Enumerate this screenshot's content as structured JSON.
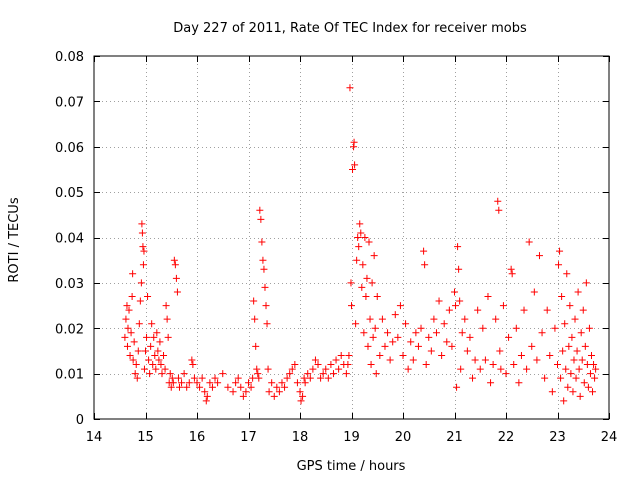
{
  "chart_data": {
    "type": "scatter",
    "title": "Day 227 of 2011, Rate Of TEC Index for receiver mobs",
    "xlabel": "GPS time / hours",
    "ylabel": "ROTI / TECUs",
    "xlim": [
      14,
      24
    ],
    "ylim": [
      0,
      0.08
    ],
    "xticks": [
      14,
      15,
      16,
      17,
      18,
      19,
      20,
      21,
      22,
      23,
      24
    ],
    "yticks": [
      0,
      0.01,
      0.02,
      0.03,
      0.04,
      0.05,
      0.06,
      0.07,
      0.08
    ],
    "xtick_labels": [
      "14",
      "15",
      "16",
      "17",
      "18",
      "19",
      "20",
      "21",
      "22",
      "23",
      "24"
    ],
    "ytick_labels": [
      "0",
      "0.01",
      "0.02",
      "0.03",
      "0.04",
      "0.05",
      "0.06",
      "0.07",
      "0.08"
    ],
    "grid": true,
    "marker": "+",
    "color": "#ff0000",
    "series": [
      {
        "name": "ROTI",
        "points": [
          [
            14.6,
            0.018
          ],
          [
            14.62,
            0.022
          ],
          [
            14.64,
            0.025
          ],
          [
            14.65,
            0.016
          ],
          [
            14.66,
            0.02
          ],
          [
            14.68,
            0.024
          ],
          [
            14.7,
            0.014
          ],
          [
            14.72,
            0.019
          ],
          [
            14.74,
            0.027
          ],
          [
            14.75,
            0.032
          ],
          [
            14.76,
            0.013
          ],
          [
            14.78,
            0.017
          ],
          [
            14.8,
            0.01
          ],
          [
            14.82,
            0.012
          ],
          [
            14.84,
            0.009
          ],
          [
            14.86,
            0.015
          ],
          [
            14.88,
            0.021
          ],
          [
            14.9,
            0.026
          ],
          [
            14.92,
            0.03
          ],
          [
            14.93,
            0.043
          ],
          [
            14.94,
            0.041
          ],
          [
            14.95,
            0.038
          ],
          [
            14.96,
            0.034
          ],
          [
            14.97,
            0.037
          ],
          [
            14.98,
            0.011
          ],
          [
            15.0,
            0.015
          ],
          [
            15.02,
            0.018
          ],
          [
            15.04,
            0.027
          ],
          [
            15.06,
            0.013
          ],
          [
            15.08,
            0.01
          ],
          [
            15.1,
            0.016
          ],
          [
            15.12,
            0.021
          ],
          [
            15.14,
            0.012
          ],
          [
            15.16,
            0.018
          ],
          [
            15.18,
            0.014
          ],
          [
            15.2,
            0.011
          ],
          [
            15.22,
            0.019
          ],
          [
            15.24,
            0.015
          ],
          [
            15.26,
            0.013
          ],
          [
            15.28,
            0.017
          ],
          [
            15.3,
            0.012
          ],
          [
            15.32,
            0.01
          ],
          [
            15.35,
            0.014
          ],
          [
            15.38,
            0.011
          ],
          [
            15.4,
            0.025
          ],
          [
            15.42,
            0.022
          ],
          [
            15.44,
            0.018
          ],
          [
            15.46,
            0.008
          ],
          [
            15.48,
            0.01
          ],
          [
            15.5,
            0.007
          ],
          [
            15.52,
            0.009
          ],
          [
            15.54,
            0.008
          ],
          [
            15.56,
            0.035
          ],
          [
            15.58,
            0.034
          ],
          [
            15.6,
            0.031
          ],
          [
            15.62,
            0.028
          ],
          [
            15.64,
            0.009
          ],
          [
            15.66,
            0.007
          ],
          [
            15.7,
            0.008
          ],
          [
            15.75,
            0.01
          ],
          [
            15.8,
            0.007
          ],
          [
            15.85,
            0.008
          ],
          [
            15.9,
            0.013
          ],
          [
            15.92,
            0.012
          ],
          [
            15.95,
            0.009
          ],
          [
            16.0,
            0.008
          ],
          [
            16.05,
            0.007
          ],
          [
            16.1,
            0.009
          ],
          [
            16.15,
            0.006
          ],
          [
            16.18,
            0.004
          ],
          [
            16.2,
            0.005
          ],
          [
            16.25,
            0.008
          ],
          [
            16.3,
            0.007
          ],
          [
            16.35,
            0.009
          ],
          [
            16.4,
            0.008
          ],
          [
            16.5,
            0.01
          ],
          [
            16.6,
            0.007
          ],
          [
            16.7,
            0.006
          ],
          [
            16.75,
            0.008
          ],
          [
            16.8,
            0.009
          ],
          [
            16.85,
            0.007
          ],
          [
            16.9,
            0.005
          ],
          [
            16.95,
            0.006
          ],
          [
            17.0,
            0.008
          ],
          [
            17.05,
            0.007
          ],
          [
            17.08,
            0.009
          ],
          [
            17.1,
            0.026
          ],
          [
            17.12,
            0.022
          ],
          [
            17.14,
            0.016
          ],
          [
            17.16,
            0.011
          ],
          [
            17.18,
            0.01
          ],
          [
            17.2,
            0.009
          ],
          [
            17.22,
            0.046
          ],
          [
            17.24,
            0.044
          ],
          [
            17.26,
            0.039
          ],
          [
            17.28,
            0.035
          ],
          [
            17.3,
            0.033
          ],
          [
            17.32,
            0.029
          ],
          [
            17.34,
            0.025
          ],
          [
            17.36,
            0.021
          ],
          [
            17.38,
            0.011
          ],
          [
            17.4,
            0.006
          ],
          [
            17.45,
            0.008
          ],
          [
            17.5,
            0.005
          ],
          [
            17.55,
            0.007
          ],
          [
            17.6,
            0.006
          ],
          [
            17.65,
            0.008
          ],
          [
            17.7,
            0.007
          ],
          [
            17.75,
            0.009
          ],
          [
            17.8,
            0.01
          ],
          [
            17.85,
            0.011
          ],
          [
            17.9,
            0.012
          ],
          [
            17.95,
            0.008
          ],
          [
            18.0,
            0.006
          ],
          [
            18.02,
            0.004
          ],
          [
            18.05,
            0.005
          ],
          [
            18.08,
            0.009
          ],
          [
            18.1,
            0.008
          ],
          [
            18.15,
            0.01
          ],
          [
            18.2,
            0.009
          ],
          [
            18.25,
            0.011
          ],
          [
            18.3,
            0.013
          ],
          [
            18.35,
            0.012
          ],
          [
            18.4,
            0.009
          ],
          [
            18.45,
            0.01
          ],
          [
            18.5,
            0.011
          ],
          [
            18.55,
            0.009
          ],
          [
            18.6,
            0.012
          ],
          [
            18.65,
            0.01
          ],
          [
            18.7,
            0.013
          ],
          [
            18.75,
            0.011
          ],
          [
            18.8,
            0.014
          ],
          [
            18.85,
            0.012
          ],
          [
            18.9,
            0.01
          ],
          [
            18.93,
            0.012
          ],
          [
            18.95,
            0.014
          ],
          [
            18.97,
            0.073
          ],
          [
            18.99,
            0.03
          ],
          [
            19.0,
            0.025
          ],
          [
            19.02,
            0.055
          ],
          [
            19.04,
            0.06
          ],
          [
            19.05,
            0.061
          ],
          [
            19.06,
            0.056
          ],
          [
            19.08,
            0.021
          ],
          [
            19.1,
            0.035
          ],
          [
            19.12,
            0.04
          ],
          [
            19.14,
            0.038
          ],
          [
            19.16,
            0.043
          ],
          [
            19.18,
            0.041
          ],
          [
            19.2,
            0.029
          ],
          [
            19.22,
            0.034
          ],
          [
            19.24,
            0.019
          ],
          [
            19.26,
            0.04
          ],
          [
            19.28,
            0.027
          ],
          [
            19.3,
            0.031
          ],
          [
            19.32,
            0.016
          ],
          [
            19.34,
            0.039
          ],
          [
            19.36,
            0.022
          ],
          [
            19.38,
            0.012
          ],
          [
            19.4,
            0.03
          ],
          [
            19.42,
            0.018
          ],
          [
            19.44,
            0.036
          ],
          [
            19.46,
            0.02
          ],
          [
            19.48,
            0.01
          ],
          [
            19.5,
            0.027
          ],
          [
            19.55,
            0.014
          ],
          [
            19.6,
            0.022
          ],
          [
            19.65,
            0.016
          ],
          [
            19.7,
            0.019
          ],
          [
            19.75,
            0.013
          ],
          [
            19.8,
            0.017
          ],
          [
            19.85,
            0.023
          ],
          [
            19.9,
            0.018
          ],
          [
            19.95,
            0.025
          ],
          [
            20.0,
            0.014
          ],
          [
            20.05,
            0.021
          ],
          [
            20.1,
            0.011
          ],
          [
            20.15,
            0.017
          ],
          [
            20.2,
            0.013
          ],
          [
            20.25,
            0.019
          ],
          [
            20.3,
            0.016
          ],
          [
            20.35,
            0.02
          ],
          [
            20.4,
            0.037
          ],
          [
            20.42,
            0.034
          ],
          [
            20.45,
            0.012
          ],
          [
            20.5,
            0.018
          ],
          [
            20.55,
            0.015
          ],
          [
            20.6,
            0.022
          ],
          [
            20.65,
            0.019
          ],
          [
            20.7,
            0.026
          ],
          [
            20.75,
            0.014
          ],
          [
            20.8,
            0.021
          ],
          [
            20.85,
            0.017
          ],
          [
            20.9,
            0.024
          ],
          [
            20.95,
            0.016
          ],
          [
            21.0,
            0.028
          ],
          [
            21.02,
            0.025
          ],
          [
            21.04,
            0.007
          ],
          [
            21.06,
            0.038
          ],
          [
            21.08,
            0.033
          ],
          [
            21.1,
            0.026
          ],
          [
            21.12,
            0.011
          ],
          [
            21.15,
            0.019
          ],
          [
            21.2,
            0.022
          ],
          [
            21.25,
            0.015
          ],
          [
            21.3,
            0.018
          ],
          [
            21.35,
            0.009
          ],
          [
            21.4,
            0.013
          ],
          [
            21.45,
            0.024
          ],
          [
            21.5,
            0.011
          ],
          [
            21.55,
            0.02
          ],
          [
            21.6,
            0.013
          ],
          [
            21.65,
            0.027
          ],
          [
            21.7,
            0.008
          ],
          [
            21.75,
            0.012
          ],
          [
            21.8,
            0.022
          ],
          [
            21.84,
            0.048
          ],
          [
            21.86,
            0.046
          ],
          [
            21.88,
            0.015
          ],
          [
            21.9,
            0.011
          ],
          [
            21.95,
            0.025
          ],
          [
            22.0,
            0.01
          ],
          [
            22.05,
            0.018
          ],
          [
            22.1,
            0.033
          ],
          [
            22.12,
            0.032
          ],
          [
            22.15,
            0.012
          ],
          [
            22.2,
            0.02
          ],
          [
            22.25,
            0.008
          ],
          [
            22.3,
            0.014
          ],
          [
            22.35,
            0.024
          ],
          [
            22.4,
            0.011
          ],
          [
            22.45,
            0.039
          ],
          [
            22.5,
            0.016
          ],
          [
            22.55,
            0.028
          ],
          [
            22.6,
            0.013
          ],
          [
            22.65,
            0.036
          ],
          [
            22.7,
            0.019
          ],
          [
            22.75,
            0.009
          ],
          [
            22.8,
            0.024
          ],
          [
            22.85,
            0.014
          ],
          [
            22.9,
            0.006
          ],
          [
            22.95,
            0.02
          ],
          [
            23.0,
            0.012
          ],
          [
            23.02,
            0.034
          ],
          [
            23.04,
            0.037
          ],
          [
            23.06,
            0.009
          ],
          [
            23.08,
            0.027
          ],
          [
            23.1,
            0.015
          ],
          [
            23.12,
            0.004
          ],
          [
            23.14,
            0.021
          ],
          [
            23.16,
            0.011
          ],
          [
            23.18,
            0.032
          ],
          [
            23.2,
            0.007
          ],
          [
            23.22,
            0.016
          ],
          [
            23.24,
            0.025
          ],
          [
            23.26,
            0.01
          ],
          [
            23.28,
            0.018
          ],
          [
            23.3,
            0.006
          ],
          [
            23.32,
            0.013
          ],
          [
            23.34,
            0.022
          ],
          [
            23.36,
            0.009
          ],
          [
            23.38,
            0.015
          ],
          [
            23.4,
            0.028
          ],
          [
            23.42,
            0.011
          ],
          [
            23.44,
            0.005
          ],
          [
            23.46,
            0.019
          ],
          [
            23.48,
            0.013
          ],
          [
            23.5,
            0.024
          ],
          [
            23.52,
            0.008
          ],
          [
            23.54,
            0.016
          ],
          [
            23.56,
            0.03
          ],
          [
            23.58,
            0.012
          ],
          [
            23.6,
            0.007
          ],
          [
            23.62,
            0.02
          ],
          [
            23.64,
            0.01
          ],
          [
            23.66,
            0.014
          ],
          [
            23.68,
            0.006
          ],
          [
            23.7,
            0.012
          ],
          [
            23.72,
            0.009
          ],
          [
            23.74,
            0.011
          ]
        ]
      }
    ]
  }
}
